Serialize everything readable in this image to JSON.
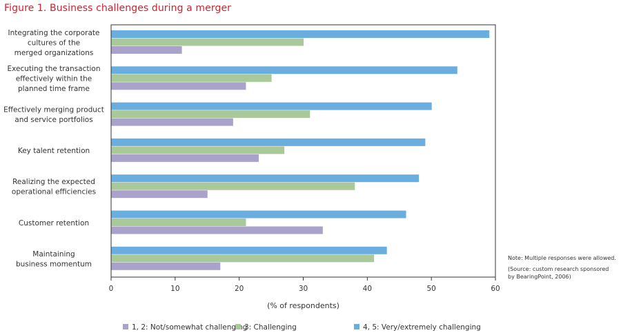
{
  "chart_data": {
    "type": "bar",
    "orientation": "horizontal",
    "title": "Figure 1. Business challenges during a merger",
    "xlabel": "(% of respondents)",
    "ylabel": "",
    "xlim": [
      0,
      60
    ],
    "xticks": [
      0,
      10,
      20,
      30,
      40,
      50,
      60
    ],
    "grid": false,
    "legend_position": "bottom",
    "categories": [
      [
        "Integrating the corporate",
        "cultures of the",
        "merged organizations"
      ],
      [
        "Executing the transaction",
        "effectively within the",
        "planned time frame"
      ],
      [
        "Effectively merging product",
        "and service portfolios"
      ],
      [
        "Key talent retention"
      ],
      [
        "Realizing the expected",
        "operational efficiencies"
      ],
      [
        "Customer retention"
      ],
      [
        "Maintaining",
        "business momentum"
      ]
    ],
    "series": [
      {
        "name": "4, 5: Very/extremely challenging",
        "color": "#6aaee0",
        "values": [
          59,
          54,
          50,
          49,
          48,
          46,
          43
        ]
      },
      {
        "name": "3: Challenging",
        "color": "#a9c99a",
        "values": [
          30,
          25,
          31,
          27,
          38,
          21,
          41
        ]
      },
      {
        "name": "1, 2: Not/somewhat challenging",
        "color": "#a9a3cc",
        "values": [
          11,
          21,
          19,
          23,
          15,
          33,
          17
        ]
      }
    ],
    "legend_order": [
      2,
      1,
      0
    ],
    "annotations": [
      "Note: Multiple responses were allowed.",
      "(Source: custom research sponsored",
      "by BearingPoint, 2006)"
    ]
  }
}
